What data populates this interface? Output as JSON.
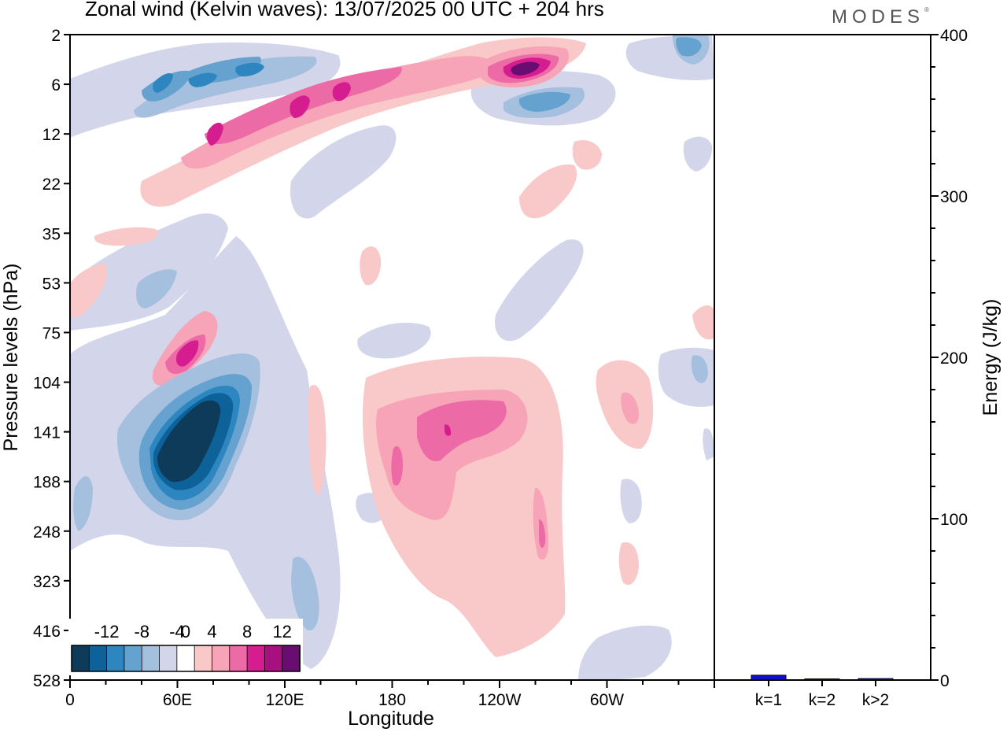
{
  "header": {
    "title": "Zonal wind (Kelvin waves):  13/07/2025  00 UTC  + 204 hrs",
    "brand": "MODES"
  },
  "chart_data": [
    {
      "type": "heatmap",
      "title": "Zonal wind (Kelvin waves):  13/07/2025  00 UTC  + 204 hrs",
      "xlabel": "Longitude",
      "ylabel": "Pressure levels (hPa)",
      "x_ticks": [
        "0",
        "60E",
        "120E",
        "180",
        "120W",
        "60W"
      ],
      "x_tick_degrees_east": [
        0,
        60,
        120,
        180,
        240,
        300
      ],
      "xlim_degrees_east": [
        0,
        360
      ],
      "y_ticks": [
        "2",
        "6",
        "12",
        "22",
        "35",
        "53",
        "75",
        "104",
        "141",
        "188",
        "248",
        "323",
        "416",
        "528"
      ],
      "y_scale": "levels, top to bottom",
      "colorbar": {
        "labels": [
          "-12",
          "-8",
          "-4",
          "0",
          "4",
          "8",
          "12"
        ],
        "levels": [
          -14,
          -12,
          -10,
          -8,
          -6,
          -4,
          -2,
          2,
          4,
          6,
          8,
          10,
          12,
          14
        ],
        "colors": [
          "#0d3b59",
          "#0d629a",
          "#2e86c1",
          "#65a2d0",
          "#a5bfdf",
          "#d3d6ea",
          "#ffffff",
          "#f9c8c8",
          "#f7a3b8",
          "#ec6aa5",
          "#d61d8f",
          "#a8107f",
          "#6a0d73"
        ]
      },
      "features": [
        {
          "sign": "negative",
          "peak": -14,
          "lon": 68,
          "level": "141"
        },
        {
          "sign": "positive",
          "peak": 10,
          "lon": 62,
          "level": "75-104"
        },
        {
          "sign": "positive",
          "peak": 10,
          "lon": 205,
          "level": "141"
        },
        {
          "sign": "positive",
          "peak": 12,
          "lon": 250,
          "level": "6"
        },
        {
          "sign": "positive",
          "peak": 10,
          "lon": 130,
          "level": "6-12"
        },
        {
          "sign": "negative",
          "peak": -8,
          "lon": 60,
          "level": "6"
        },
        {
          "sign": "negative",
          "peak": -8,
          "lon": 100,
          "level": "2-6"
        },
        {
          "sign": "negative",
          "peak": -6,
          "lon": 265,
          "level": "6-12"
        }
      ]
    },
    {
      "type": "bar",
      "categories": [
        "k=1",
        "k=2",
        "k>2"
      ],
      "values": [
        3,
        0.6,
        0.9
      ],
      "ylabel": "Energy (J/kg)",
      "ylim": [
        0,
        400
      ],
      "y_ticks": [
        "0",
        "100",
        "200",
        "300",
        "400"
      ],
      "bar_color": "#1010cc"
    }
  ]
}
